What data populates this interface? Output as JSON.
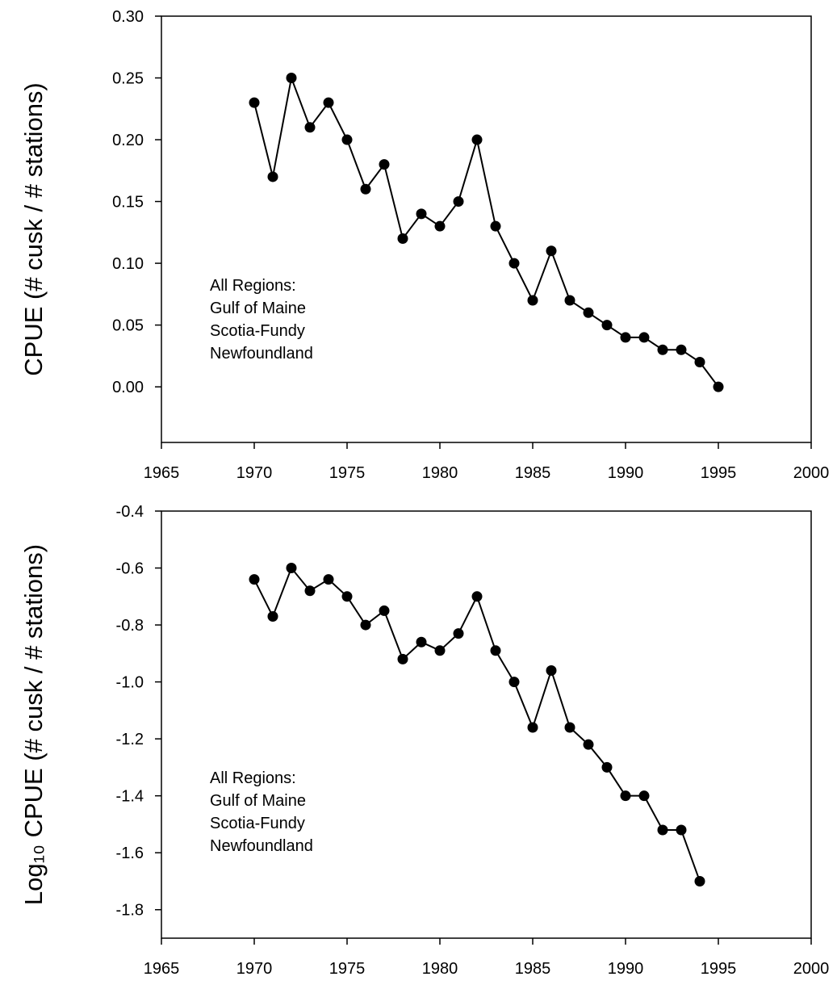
{
  "chart_data": [
    {
      "type": "line",
      "y_label": "CPUE (# cusk / # stations)",
      "annotation": [
        "All Regions:",
        "Gulf of Maine",
        "Scotia-Fundy",
        "Newfoundland"
      ],
      "x": [
        1970,
        1971,
        1972,
        1973,
        1974,
        1975,
        1976,
        1977,
        1978,
        1979,
        1980,
        1981,
        1982,
        1983,
        1984,
        1985,
        1986,
        1987,
        1988,
        1989,
        1990,
        1991,
        1992,
        1993,
        1994,
        1995
      ],
      "values": [
        0.23,
        0.17,
        0.25,
        0.21,
        0.23,
        0.2,
        0.16,
        0.18,
        0.12,
        0.14,
        0.13,
        0.15,
        0.2,
        0.13,
        0.1,
        0.07,
        0.11,
        0.07,
        0.06,
        0.05,
        0.04,
        0.04,
        0.03,
        0.03,
        0.02,
        0.0
      ],
      "color": "#000000",
      "xlim": [
        1965,
        2000
      ],
      "xticks": [
        1965,
        1970,
        1975,
        1980,
        1985,
        1990,
        1995,
        2000
      ],
      "ylim": [
        -0.045,
        0.3
      ],
      "yticks": [
        {
          "value": 0,
          "label": "0.00"
        },
        0.05,
        {
          "value": 0.1,
          "label": "0.10"
        },
        0.15,
        {
          "value": 0.2,
          "label": "0.20"
        },
        0.25,
        {
          "value": 0.3,
          "label": "0.30"
        }
      ]
    },
    {
      "type": "line",
      "y_label": "Log₁₀ CPUE (# cusk / # stations)",
      "annotation": [
        "All Regions:",
        "Gulf of Maine",
        "Scotia-Fundy",
        "Newfoundland"
      ],
      "x": [
        1970,
        1971,
        1972,
        1973,
        1974,
        1975,
        1976,
        1977,
        1978,
        1979,
        1980,
        1981,
        1982,
        1983,
        1984,
        1985,
        1986,
        1987,
        1988,
        1989,
        1990,
        1991,
        1992,
        1993,
        1994
      ],
      "values": [
        -0.64,
        -0.77,
        -0.6,
        -0.68,
        -0.64,
        -0.7,
        -0.8,
        -0.75,
        -0.92,
        -0.86,
        -0.89,
        -0.83,
        -0.7,
        -0.89,
        -1.0,
        -1.16,
        -0.96,
        -1.16,
        -1.22,
        -1.3,
        -1.4,
        -1.4,
        -1.52,
        -1.52,
        -1.7
      ],
      "color": "#000000",
      "xlim": [
        1965,
        2000
      ],
      "xticks": [
        1965,
        1970,
        1975,
        1980,
        1985,
        1990,
        1995,
        2000
      ],
      "ylim": [
        -1.9,
        -0.4
      ],
      "yticks": [
        -0.4,
        -0.6,
        -0.8,
        {
          "value": -1.0,
          "label": "-1.0"
        },
        -1.2,
        -1.4,
        -1.6,
        -1.8
      ]
    }
  ]
}
